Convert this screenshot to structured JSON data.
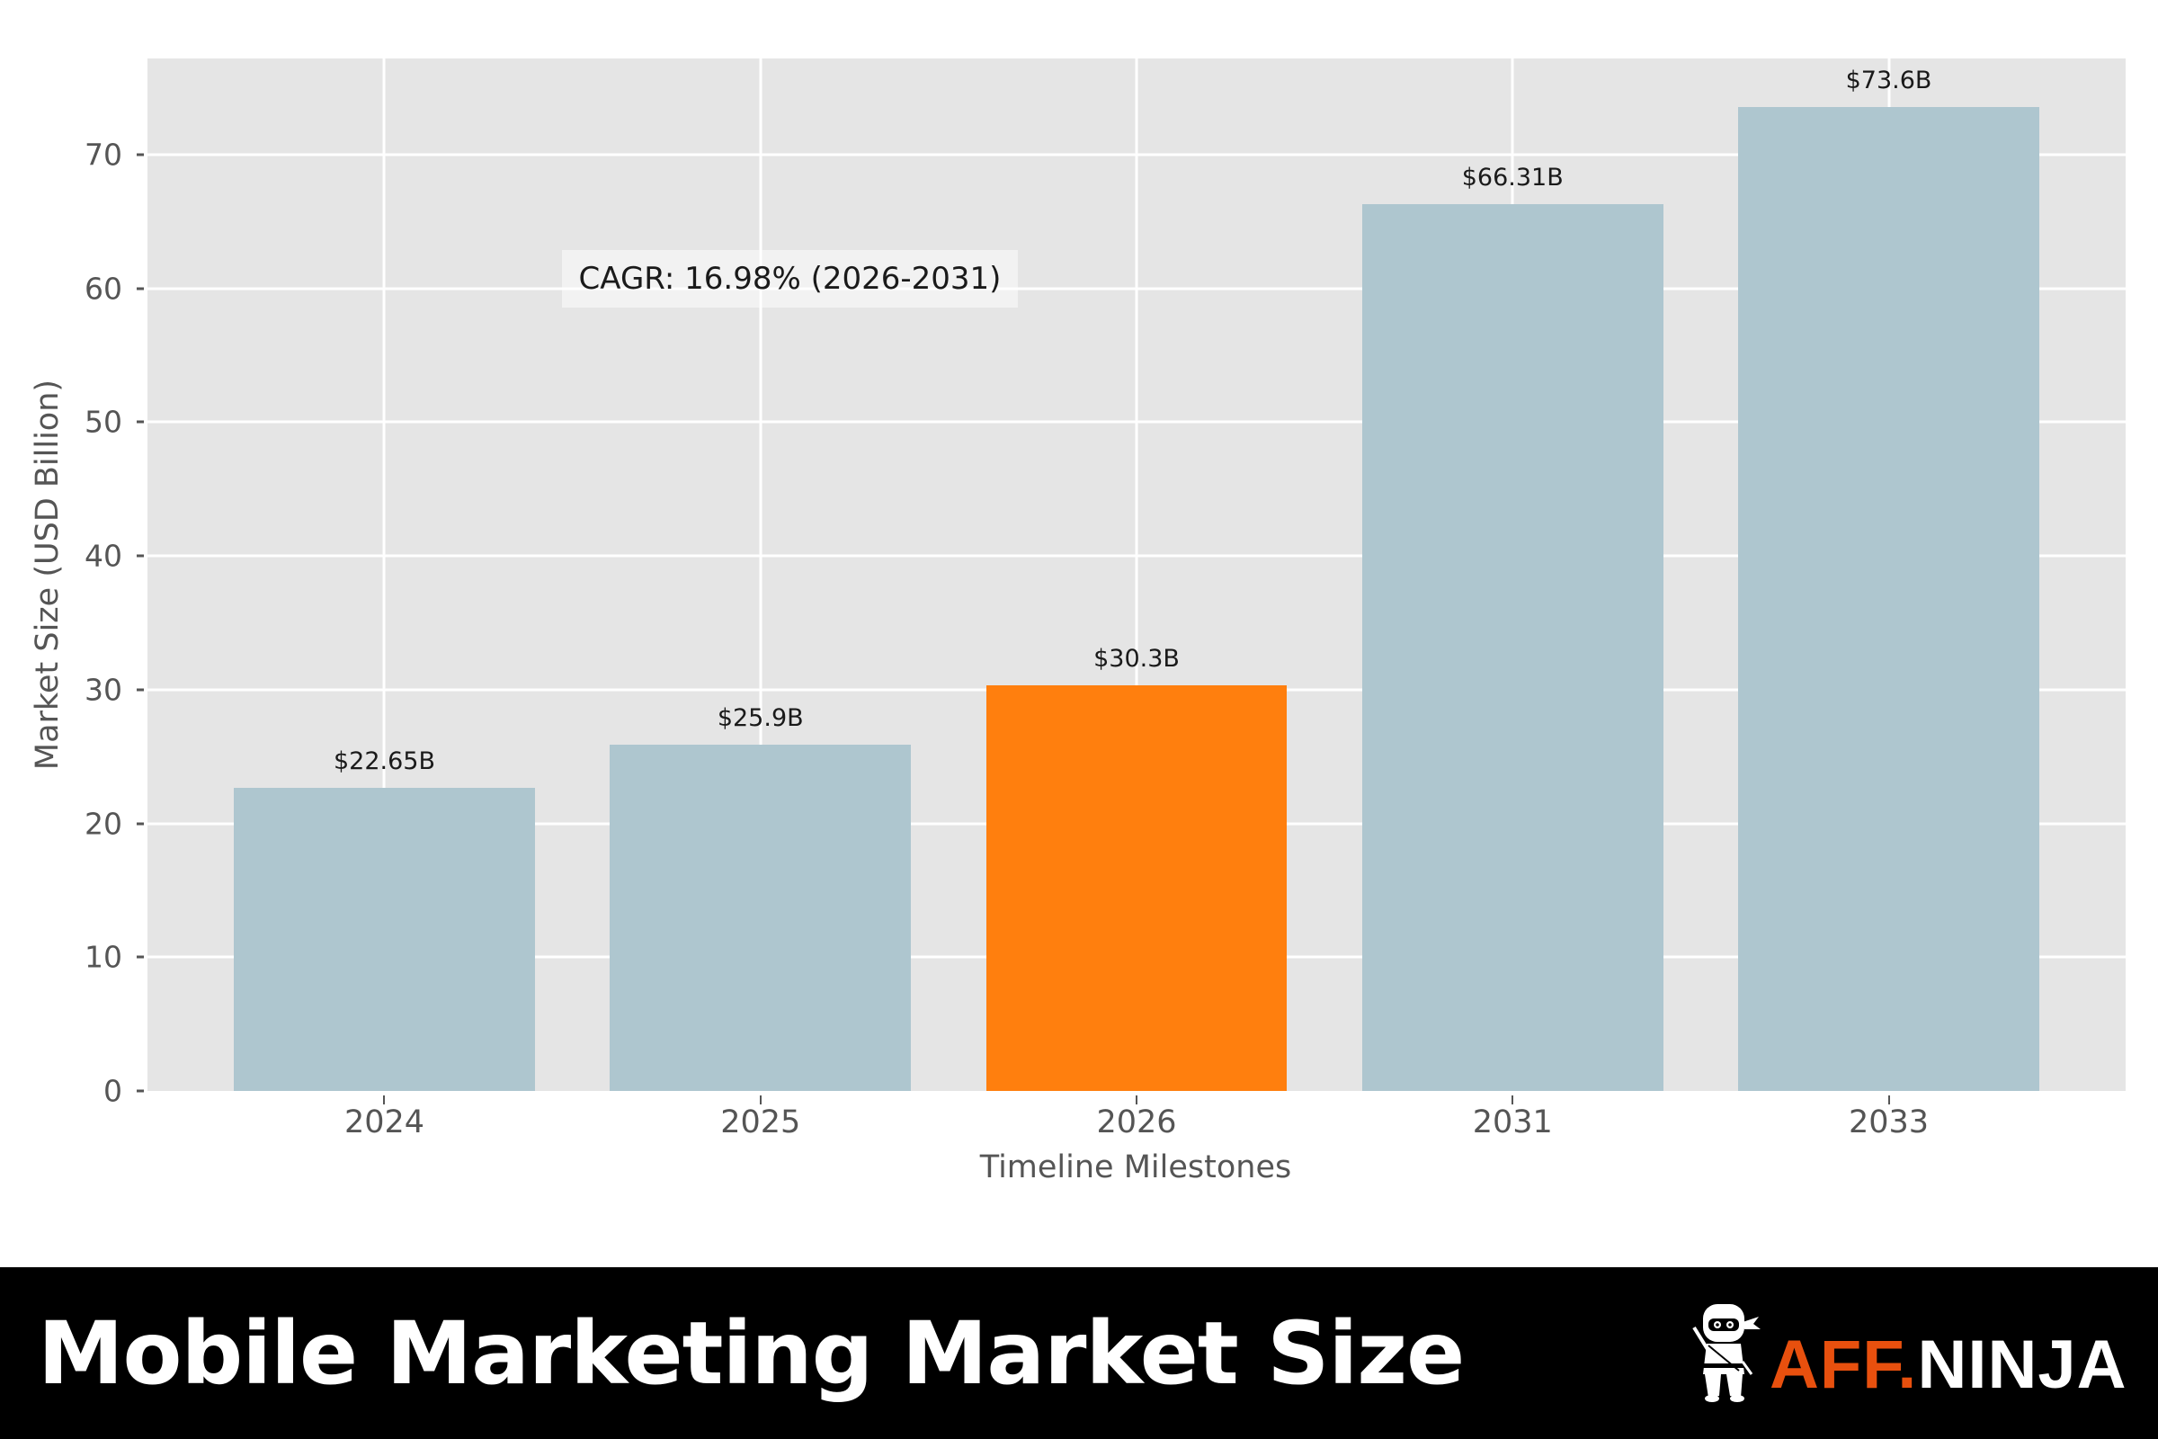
{
  "chart_data": {
    "type": "bar",
    "title": "Mobile Marketing Market Size",
    "xlabel": "Timeline Milestones",
    "ylabel": "Market Size (USD Billion)",
    "categories": [
      "2024",
      "2025",
      "2026",
      "2031",
      "2033"
    ],
    "values": [
      22.65,
      25.9,
      30.3,
      66.31,
      73.6
    ],
    "value_labels": [
      "$22.65B",
      "$25.9B",
      "$30.3B",
      "$66.31B",
      "$73.6B"
    ],
    "bar_colors": [
      "#aec6cf",
      "#aec6cf",
      "#ff7f0e",
      "#aec6cf",
      "#aec6cf"
    ],
    "highlight_category": "2026",
    "yticks": [
      0,
      10,
      20,
      30,
      40,
      50,
      60,
      70
    ],
    "ylim": [
      0,
      77.2
    ],
    "grid": true,
    "legend": null,
    "annotations": [
      {
        "text": "CAGR: 16.98% (2026-2031)"
      }
    ]
  },
  "annotation": {
    "cagr": "CAGR: 16.98% (2026-2031)"
  },
  "axes": {
    "xlabel": "Timeline Milestones",
    "ylabel": "Market Size (USD Billion)"
  },
  "banner": {
    "title": "Mobile Marketing Market Size",
    "logo_part1": "AFF.",
    "logo_part2": "NINJA",
    "logo_icon": "ninja-mascot-icon"
  },
  "colors": {
    "plot_background": "#e5e5e5",
    "bar_default": "#aec6cf",
    "bar_highlight": "#ff7f0e",
    "banner_background": "#000000",
    "logo_accent": "#e8500e"
  }
}
